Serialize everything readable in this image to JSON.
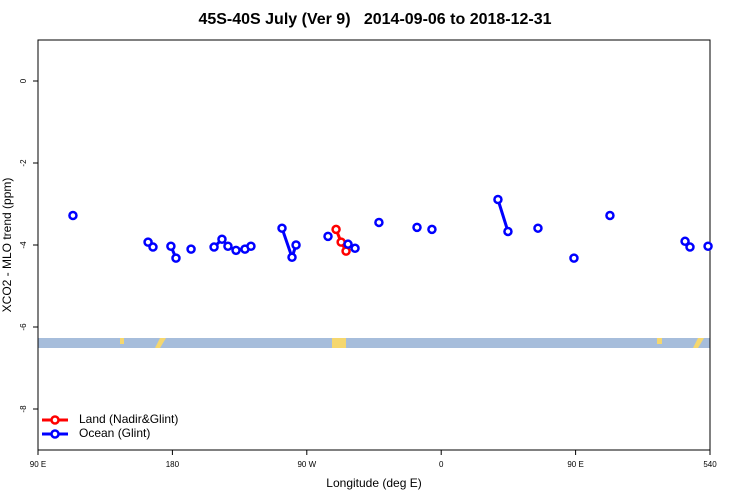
{
  "chart_data": {
    "type": "line",
    "title": "45S-40S July (Ver 9)   2014-09-06 to 2018-12-31",
    "x_label": "Longitude (deg E)",
    "y_label": "XCO2 - MLO trend (ppm)",
    "xlim": [
      90,
      540
    ],
    "ylim": [
      -9,
      1
    ],
    "xticks": [
      {
        "value": 90,
        "label": "90 E"
      },
      180,
      {
        "value": 270,
        "label": "90 W"
      },
      {
        "value": 360,
        "label": "0"
      },
      {
        "value": 450,
        "label": "90 E"
      },
      540
    ],
    "yticks": [
      -8,
      -6,
      -4,
      -2,
      0
    ],
    "legend": "bottomleft",
    "series": [
      {
        "name": "Land (Nadir&Glint)",
        "color": "#ff0000",
        "x": [
          289.6,
          293,
          296.3
        ],
        "values": [
          -3.62,
          -3.93,
          -4.15
        ]
      },
      {
        "name": "Ocean (Glint)",
        "color": "#0000ff",
        "x": [
          113.4,
          null,
          163.7,
          167,
          null,
          179,
          182.4,
          null,
          192.5,
          null,
          207.9,
          213.2,
          217.2,
          222.6,
          228.6,
          232.6,
          null,
          253.4,
          260.1,
          262.8,
          null,
          284.2,
          null,
          297.6,
          302.3,
          null,
          318.3,
          null,
          343.8,
          null,
          353.8,
          null,
          398,
          404.7,
          null,
          424.8,
          null,
          448.9,
          null,
          473,
          null,
          523.3,
          526.6,
          null,
          538.7
        ],
        "values": [
          -3.28,
          null,
          -3.93,
          -4.05,
          null,
          -4.03,
          -4.32,
          null,
          -4.1,
          null,
          -4.05,
          -3.86,
          -4.03,
          -4.13,
          -4.1,
          -4.03,
          null,
          -3.59,
          -4.3,
          -4.0,
          null,
          -3.79,
          null,
          -3.98,
          -4.08,
          null,
          -3.45,
          null,
          -3.57,
          null,
          -3.62,
          null,
          -2.89,
          -3.67,
          null,
          -3.59,
          null,
          -4.32,
          null,
          -3.28,
          null,
          -3.91,
          -4.05,
          null,
          -4.03
        ]
      }
    ]
  }
}
